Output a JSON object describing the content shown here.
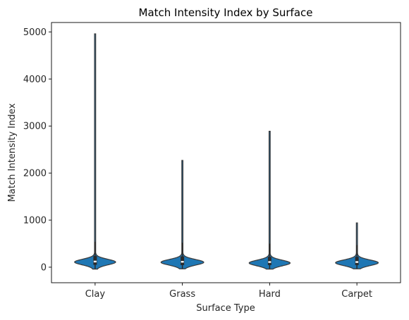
{
  "chart_data": {
    "type": "violin",
    "title": "Match Intensity Index by Surface",
    "xlabel": "Surface Type",
    "ylabel": "Match Intensity Index",
    "ylim": [
      -330,
      5200
    ],
    "yticks": [
      0,
      1000,
      2000,
      3000,
      4000,
      5000
    ],
    "grid": false,
    "legend": "none",
    "colors": {
      "violin": "#1f77b4",
      "edge": "#3a3a3a",
      "box": "#2b2b2b",
      "median": "#ffffff"
    },
    "categories": [
      "Clay",
      "Grass",
      "Hard",
      "Carpet"
    ],
    "series": [
      {
        "category": "Clay",
        "min": -40,
        "max": 4960,
        "q1": 50,
        "median": 120,
        "q3": 240,
        "whisker_high": 540,
        "mode": 110,
        "width": 0.47
      },
      {
        "category": "Grass",
        "min": -35,
        "max": 2270,
        "q1": 45,
        "median": 115,
        "q3": 230,
        "whisker_high": 520,
        "mode": 105,
        "width": 0.49
      },
      {
        "category": "Hard",
        "min": -40,
        "max": 2890,
        "q1": 45,
        "median": 110,
        "q3": 220,
        "whisker_high": 500,
        "mode": 90,
        "width": 0.47
      },
      {
        "category": "Carpet",
        "min": -35,
        "max": 940,
        "q1": 45,
        "median": 110,
        "q3": 220,
        "whisker_high": 470,
        "mode": 95,
        "width": 0.49
      }
    ]
  }
}
